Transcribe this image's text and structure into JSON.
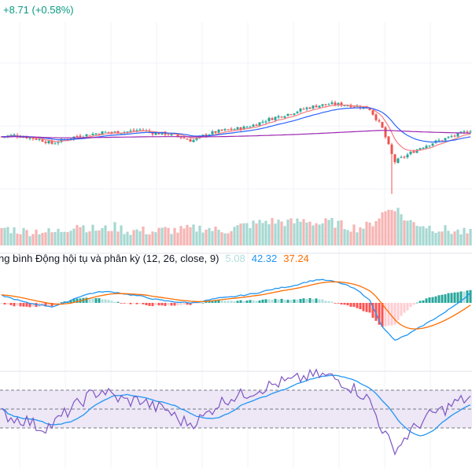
{
  "header": {
    "change_text": "+8.71 (+0.58%)",
    "change_color": "#089981"
  },
  "macd": {
    "label": "ng bình Động hội tụ và phân kỳ (12, 26, close, 9)",
    "hist_value": "5.08",
    "macd_value": "42.32",
    "signal_value": "37.24"
  },
  "colors": {
    "up": "#26a69a",
    "down": "#ef5350",
    "up_volume": "#a7d8d2",
    "down_volume": "#f5b5b3",
    "ma_fast": "#f77c80",
    "ma_mid": "#2962ff",
    "ma_slow": "#9c27b0",
    "macd_line": "#2196f3",
    "signal_line": "#ff6d00",
    "hist_up_strong": "#26a69a",
    "hist_up_weak": "#b2dfdb",
    "hist_down_strong": "#ff5252",
    "hist_down_weak": "#ffcdd2",
    "rsi_line": "#7e57c2",
    "rsi_ma": "#2196f3",
    "rsi_band": "#ede7f6"
  },
  "chart_data": {
    "type": "candlestick",
    "panes": [
      "price",
      "volume",
      "macd",
      "rsi"
    ],
    "price_trend": [
      0.46,
      0.48,
      0.45,
      0.42,
      0.36,
      0.42,
      0.47,
      0.49,
      0.52,
      0.52,
      0.53,
      0.56,
      0.51,
      0.5,
      0.46,
      0.4,
      0.48,
      0.53,
      0.56,
      0.58,
      0.63,
      0.7,
      0.75,
      0.8,
      0.86,
      0.9,
      0.92,
      0.91,
      0.89,
      0.86,
      0.6,
      0.1,
      0.2,
      0.3,
      0.37,
      0.43,
      0.49,
      0.55
    ],
    "volume_trend": [
      0.45,
      0.4,
      0.35,
      0.38,
      0.32,
      0.4,
      0.55,
      0.42,
      0.4,
      0.48,
      0.36,
      0.38,
      0.35,
      0.4,
      0.38,
      0.42,
      0.45,
      0.38,
      0.4,
      0.5,
      0.55,
      0.62,
      0.6,
      0.58,
      0.65,
      0.55,
      0.6,
      0.5,
      0.45,
      0.5,
      0.8,
      1.0,
      0.62,
      0.55,
      0.45,
      0.4,
      0.35,
      0.3
    ],
    "macd_trend": [
      0.2,
      0.1,
      0.0,
      -0.05,
      -0.1,
      0.0,
      0.15,
      0.25,
      0.3,
      0.28,
      0.22,
      0.18,
      0.1,
      0.05,
      0.02,
      0.0,
      0.05,
      0.12,
      0.15,
      0.2,
      0.25,
      0.33,
      0.4,
      0.45,
      0.55,
      0.62,
      0.58,
      0.5,
      0.35,
      0.1,
      -0.6,
      -1.0,
      -0.85,
      -0.65,
      -0.45,
      -0.25,
      0.0,
      0.25
    ],
    "rsi_trend": [
      45,
      40,
      38,
      30,
      33,
      45,
      55,
      65,
      70,
      62,
      58,
      60,
      52,
      50,
      38,
      35,
      42,
      55,
      62,
      65,
      70,
      74,
      78,
      80,
      84,
      86,
      84,
      78,
      70,
      60,
      30,
      5,
      22,
      35,
      45,
      50,
      58,
      62
    ],
    "rsi_levels": [
      70,
      50,
      30
    ],
    "latest": {
      "macd_histogram": 5.08,
      "macd": 42.32,
      "signal": 37.24
    }
  }
}
